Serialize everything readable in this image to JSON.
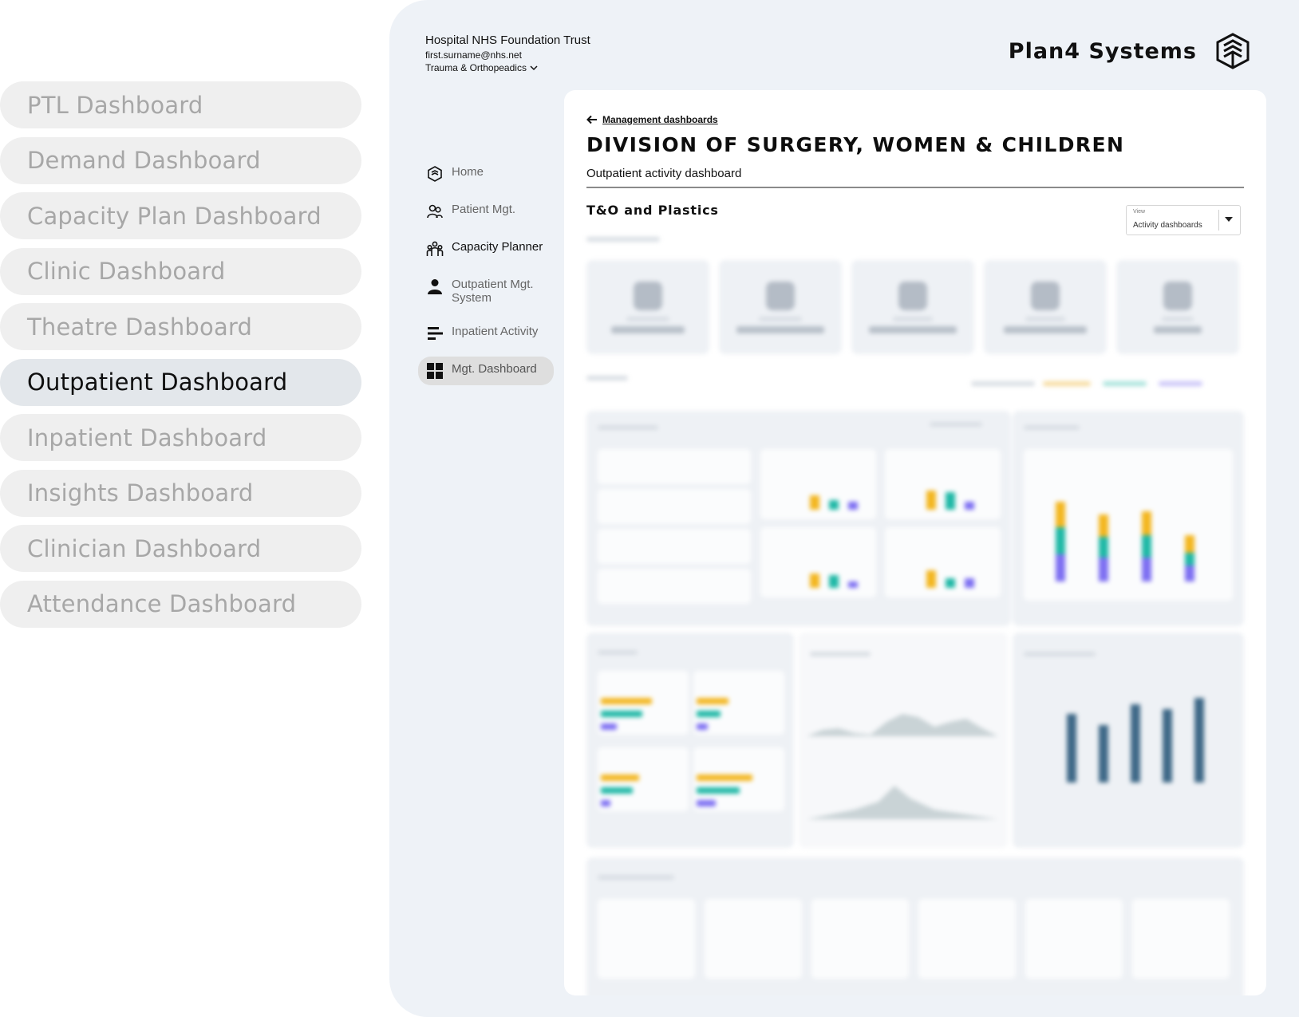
{
  "dashboards": [
    {
      "label": "PTL Dashboard",
      "active": false
    },
    {
      "label": "Demand Dashboard",
      "active": false
    },
    {
      "label": "Capacity Plan Dashboard",
      "active": false
    },
    {
      "label": "Clinic Dashboard",
      "active": false
    },
    {
      "label": "Theatre Dashboard",
      "active": false
    },
    {
      "label": "Outpatient Dashboard",
      "active": true
    },
    {
      "label": "Inpatient Dashboard",
      "active": false
    },
    {
      "label": "Insights Dashboard",
      "active": false
    },
    {
      "label": "Clinician Dashboard",
      "active": false
    },
    {
      "label": "Attendance Dashboard",
      "active": false
    }
  ],
  "header": {
    "trust": "Hospital NHS Foundation Trust",
    "email": "first.surname@nhs.net",
    "department": "Trauma & Orthopeadics",
    "brand": "Plan4 Systems"
  },
  "nav": [
    {
      "label": "Home",
      "icon": "logo-icon"
    },
    {
      "label": "Patient Mgt.",
      "icon": "patients-icon"
    },
    {
      "label": "Capacity Planner",
      "icon": "team-icon"
    },
    {
      "label": "Outpatient Mgt. System",
      "icon": "person-icon"
    },
    {
      "label": "Inpatient Activity",
      "icon": "bars-icon"
    },
    {
      "label": "Mgt. Dashboard",
      "icon": "grid-icon",
      "active": true
    }
  ],
  "main": {
    "back_link": "Management dashboards",
    "title": "DIVISION OF SURGERY, WOMEN & CHILDREN",
    "subtitle": "Outpatient activity dashboard",
    "section": "T&O and Plastics",
    "view_select": {
      "label": "View",
      "value": "Activity dashboards"
    }
  },
  "colors": {
    "yellow": "#f3b61f",
    "teal": "#1fb8a6",
    "purple": "#7d6ff2",
    "navy": "#3e6887"
  }
}
